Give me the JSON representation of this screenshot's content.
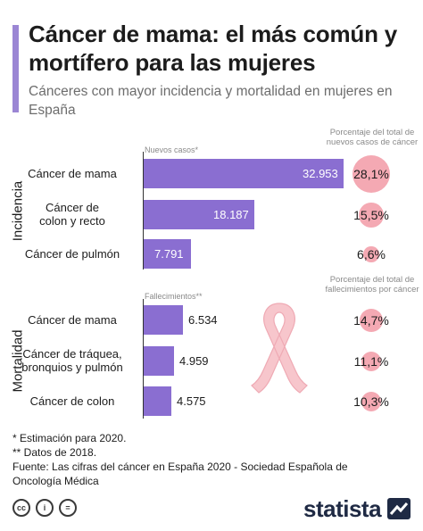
{
  "title": "Cáncer de mama: el más común y mortífero para las mujeres",
  "subtitle": "Cánceres con mayor incidencia y mortalidad en mujeres en España",
  "sections": {
    "incidence_label": "Incidencia",
    "mortality_label": "Mortalidad",
    "new_cases_label": "Nuevos casos*",
    "deaths_label": "Fallecimientos**",
    "pct_new_header": "Porcentaje del total de nuevos casos de cáncer",
    "pct_deaths_header": "Porcentaje del total de fallecimientos por cáncer"
  },
  "chart_data": [
    {
      "type": "bar",
      "name": "Incidencia",
      "categories": [
        "Cáncer de mama",
        "Cáncer de colon y recto",
        "Cáncer de pulmón"
      ],
      "values": [
        32953,
        18187,
        7791
      ],
      "value_labels": [
        "32.953",
        "18.187",
        "7.791"
      ],
      "percent_labels": [
        "28,1%",
        "15,5%",
        "6,6%"
      ],
      "percent_values": [
        28.1,
        15.5,
        6.6
      ]
    },
    {
      "type": "bar",
      "name": "Mortalidad",
      "categories": [
        "Cáncer de mama",
        "Cáncer de tráquea, bronquios y pulmón",
        "Cáncer de colon"
      ],
      "values": [
        6534,
        4959,
        4575
      ],
      "value_labels": [
        "6.534",
        "4.959",
        "4.575"
      ],
      "percent_labels": [
        "14,7%",
        "11,1%",
        "10,3%"
      ],
      "percent_values": [
        14.7,
        11.1,
        10.3
      ]
    }
  ],
  "row_labels": {
    "inc": [
      "Cáncer de mama",
      "Cáncer de\ncolon y recto",
      "Cáncer de pulmón"
    ],
    "mor": [
      "Cáncer de mama",
      "Cáncer de tráquea,\nbronquios y pulmón",
      "Cáncer de colon"
    ]
  },
  "footnotes": {
    "note1": "*  Estimación para 2020.",
    "note2": "** Datos de 2018.",
    "source": "Fuente: Las cifras del cáncer en España 2020 - Sociedad Española de Oncología Médica"
  },
  "branding": {
    "logo": "statista"
  },
  "colors": {
    "bar": "#8a6ed1",
    "circle": "#f4a9b3",
    "accent": "#9b86d4",
    "ribbon": "#f7c6cc"
  },
  "icons": [
    "cc-icon",
    "attribution-icon",
    "no-derivatives-icon",
    "pink-ribbon-icon",
    "statista-logo-icon"
  ]
}
